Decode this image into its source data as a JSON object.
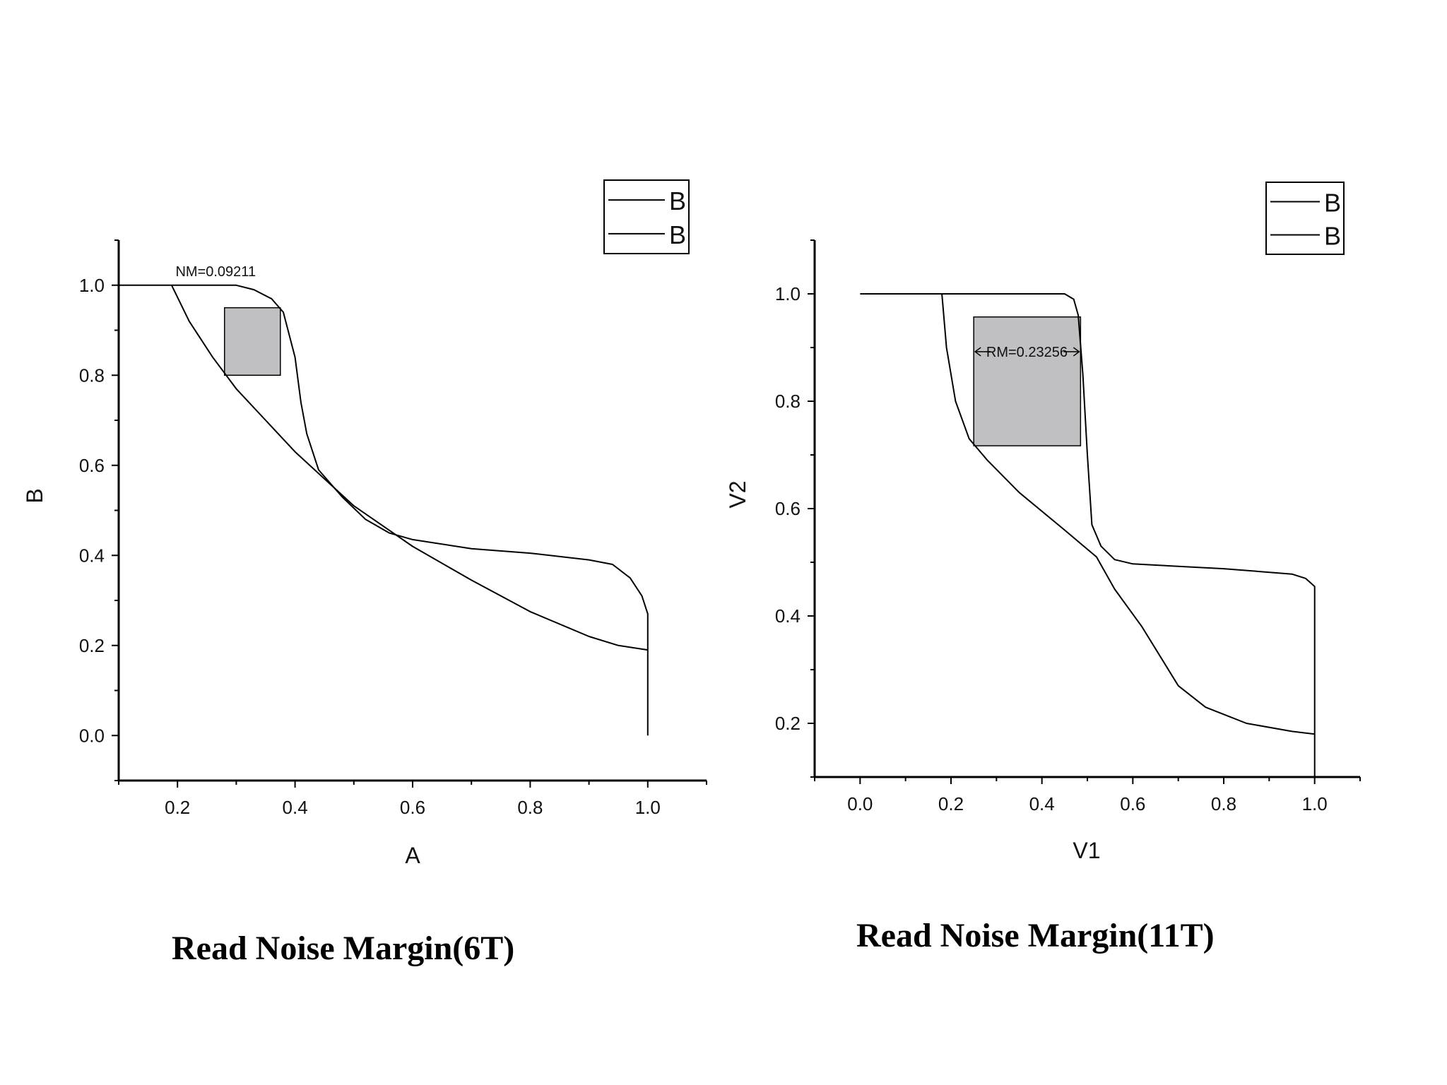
{
  "chart_data": [
    {
      "type": "line",
      "title": "Read Noise Margin(6T)",
      "xlabel": "A",
      "ylabel": "B",
      "xlim": [
        0.1,
        1.1
      ],
      "ylim": [
        -0.1,
        1.1
      ],
      "xticks": [
        0.2,
        0.4,
        0.6,
        0.8,
        1.0
      ],
      "xtick_labels": [
        "0.2",
        "0.4",
        "0.6",
        "0.8",
        "1.0"
      ],
      "yticks": [
        0.0,
        0.2,
        0.4,
        0.6,
        0.8,
        1.0
      ],
      "ytick_labels": [
        "0.0",
        "0.2",
        "0.4",
        "0.6",
        "0.8",
        "1.0"
      ],
      "grid": false,
      "legend_position": "top-right",
      "series": [
        {
          "name": "B",
          "points": [
            [
              0.1,
              1.0
            ],
            [
              0.2,
              1.0
            ],
            [
              0.3,
              1.0
            ],
            [
              0.33,
              0.99
            ],
            [
              0.36,
              0.97
            ],
            [
              0.38,
              0.94
            ],
            [
              0.4,
              0.84
            ],
            [
              0.41,
              0.74
            ],
            [
              0.42,
              0.67
            ],
            [
              0.44,
              0.59
            ],
            [
              0.48,
              0.53
            ],
            [
              0.52,
              0.48
            ],
            [
              0.56,
              0.45
            ],
            [
              0.6,
              0.435
            ],
            [
              0.7,
              0.415
            ],
            [
              0.8,
              0.405
            ],
            [
              0.9,
              0.39
            ],
            [
              0.94,
              0.38
            ],
            [
              0.97,
              0.35
            ],
            [
              0.99,
              0.31
            ],
            [
              1.0,
              0.27
            ],
            [
              1.0,
              0.0
            ]
          ]
        },
        {
          "name": "B",
          "points": [
            [
              0.19,
              1.0
            ],
            [
              0.22,
              0.92
            ],
            [
              0.26,
              0.84
            ],
            [
              0.3,
              0.77
            ],
            [
              0.35,
              0.7
            ],
            [
              0.4,
              0.63
            ],
            [
              0.45,
              0.57
            ],
            [
              0.5,
              0.51
            ],
            [
              0.55,
              0.465
            ],
            [
              0.6,
              0.42
            ],
            [
              0.7,
              0.345
            ],
            [
              0.8,
              0.275
            ],
            [
              0.9,
              0.22
            ],
            [
              0.95,
              0.2
            ],
            [
              1.0,
              0.19
            ]
          ]
        }
      ],
      "annotation_box": {
        "x0": 0.28,
        "x1": 0.375,
        "y0": 0.8,
        "y1": 0.95,
        "fill": "#c0bfc2"
      },
      "annotation_text": "NM=0.09211",
      "annotation_anchor": [
        0.265,
        1.02
      ]
    },
    {
      "type": "line",
      "title": "Read Noise Margin(11T)",
      "xlabel": "V1",
      "ylabel": "V2",
      "xlim": [
        -0.1,
        1.1
      ],
      "ylim": [
        0.1,
        1.1
      ],
      "xticks": [
        0.0,
        0.2,
        0.4,
        0.6,
        0.8,
        1.0
      ],
      "xtick_labels": [
        "0.0",
        "0.2",
        "0.4",
        "0.6",
        "0.8",
        "1.0"
      ],
      "yticks": [
        0.2,
        0.4,
        0.6,
        0.8,
        1.0
      ],
      "ytick_labels": [
        "0.2",
        "0.4",
        "0.6",
        "0.8",
        "1.0"
      ],
      "grid": false,
      "legend_position": "top-right",
      "series": [
        {
          "name": "B",
          "points": [
            [
              0.0,
              1.0
            ],
            [
              0.2,
              1.0
            ],
            [
              0.4,
              1.0
            ],
            [
              0.45,
              1.0
            ],
            [
              0.47,
              0.99
            ],
            [
              0.48,
              0.96
            ],
            [
              0.49,
              0.85
            ],
            [
              0.5,
              0.7
            ],
            [
              0.51,
              0.57
            ],
            [
              0.53,
              0.53
            ],
            [
              0.56,
              0.505
            ],
            [
              0.6,
              0.497
            ],
            [
              0.8,
              0.488
            ],
            [
              0.95,
              0.478
            ],
            [
              0.98,
              0.47
            ],
            [
              1.0,
              0.455
            ],
            [
              1.0,
              0.1
            ]
          ]
        },
        {
          "name": "B",
          "points": [
            [
              0.18,
              1.0
            ],
            [
              0.19,
              0.9
            ],
            [
              0.21,
              0.8
            ],
            [
              0.24,
              0.73
            ],
            [
              0.28,
              0.69
            ],
            [
              0.35,
              0.63
            ],
            [
              0.45,
              0.56
            ],
            [
              0.52,
              0.51
            ],
            [
              0.56,
              0.45
            ],
            [
              0.62,
              0.38
            ],
            [
              0.7,
              0.27
            ],
            [
              0.76,
              0.23
            ],
            [
              0.85,
              0.2
            ],
            [
              0.95,
              0.185
            ],
            [
              1.0,
              0.18
            ]
          ]
        }
      ],
      "annotation_box": {
        "x0": 0.25,
        "x1": 0.485,
        "y0": 0.717,
        "y1": 0.957,
        "fill": "#c0bfc2"
      },
      "annotation_text": "RM=0.23256",
      "annotation_anchor": [
        0.367,
        0.883
      ]
    }
  ]
}
